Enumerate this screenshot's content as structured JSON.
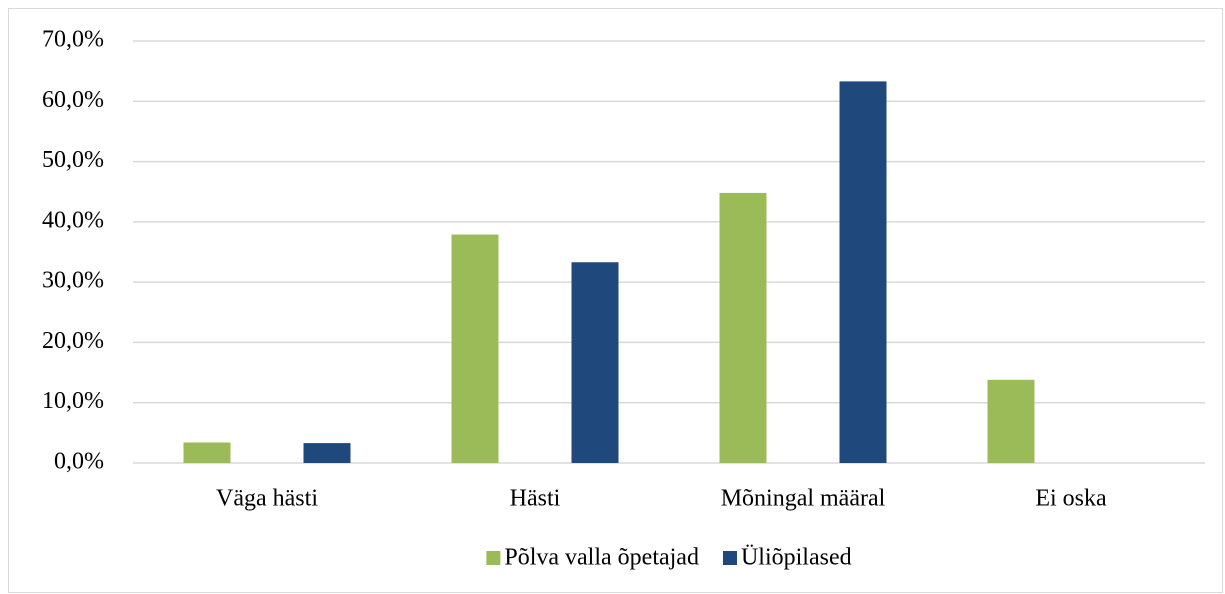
{
  "chart_data": {
    "type": "bar",
    "categories": [
      "Väga hästi",
      "Hästi",
      "Mõningal määral",
      "Ei oska"
    ],
    "series": [
      {
        "name": "Põlva valla õpetajad",
        "color": "#9bbb59",
        "values": [
          3.4,
          37.9,
          44.8,
          13.8
        ]
      },
      {
        "name": "Üliõpilased",
        "color": "#1f497d",
        "values": [
          3.3,
          33.3,
          63.3,
          0
        ]
      }
    ],
    "ylim": [
      0,
      70
    ],
    "yticks": [
      {
        "value": 0,
        "label": "0,0%"
      },
      {
        "value": 10,
        "label": "10,0%"
      },
      {
        "value": 20,
        "label": "20,0%"
      },
      {
        "value": 30,
        "label": "30,0%"
      },
      {
        "value": 40,
        "label": "40,0%"
      },
      {
        "value": 50,
        "label": "50,0%"
      },
      {
        "value": 60,
        "label": "60,0%"
      },
      {
        "value": 70,
        "label": "70,0%"
      }
    ],
    "grid": true,
    "legend": "bottom"
  }
}
